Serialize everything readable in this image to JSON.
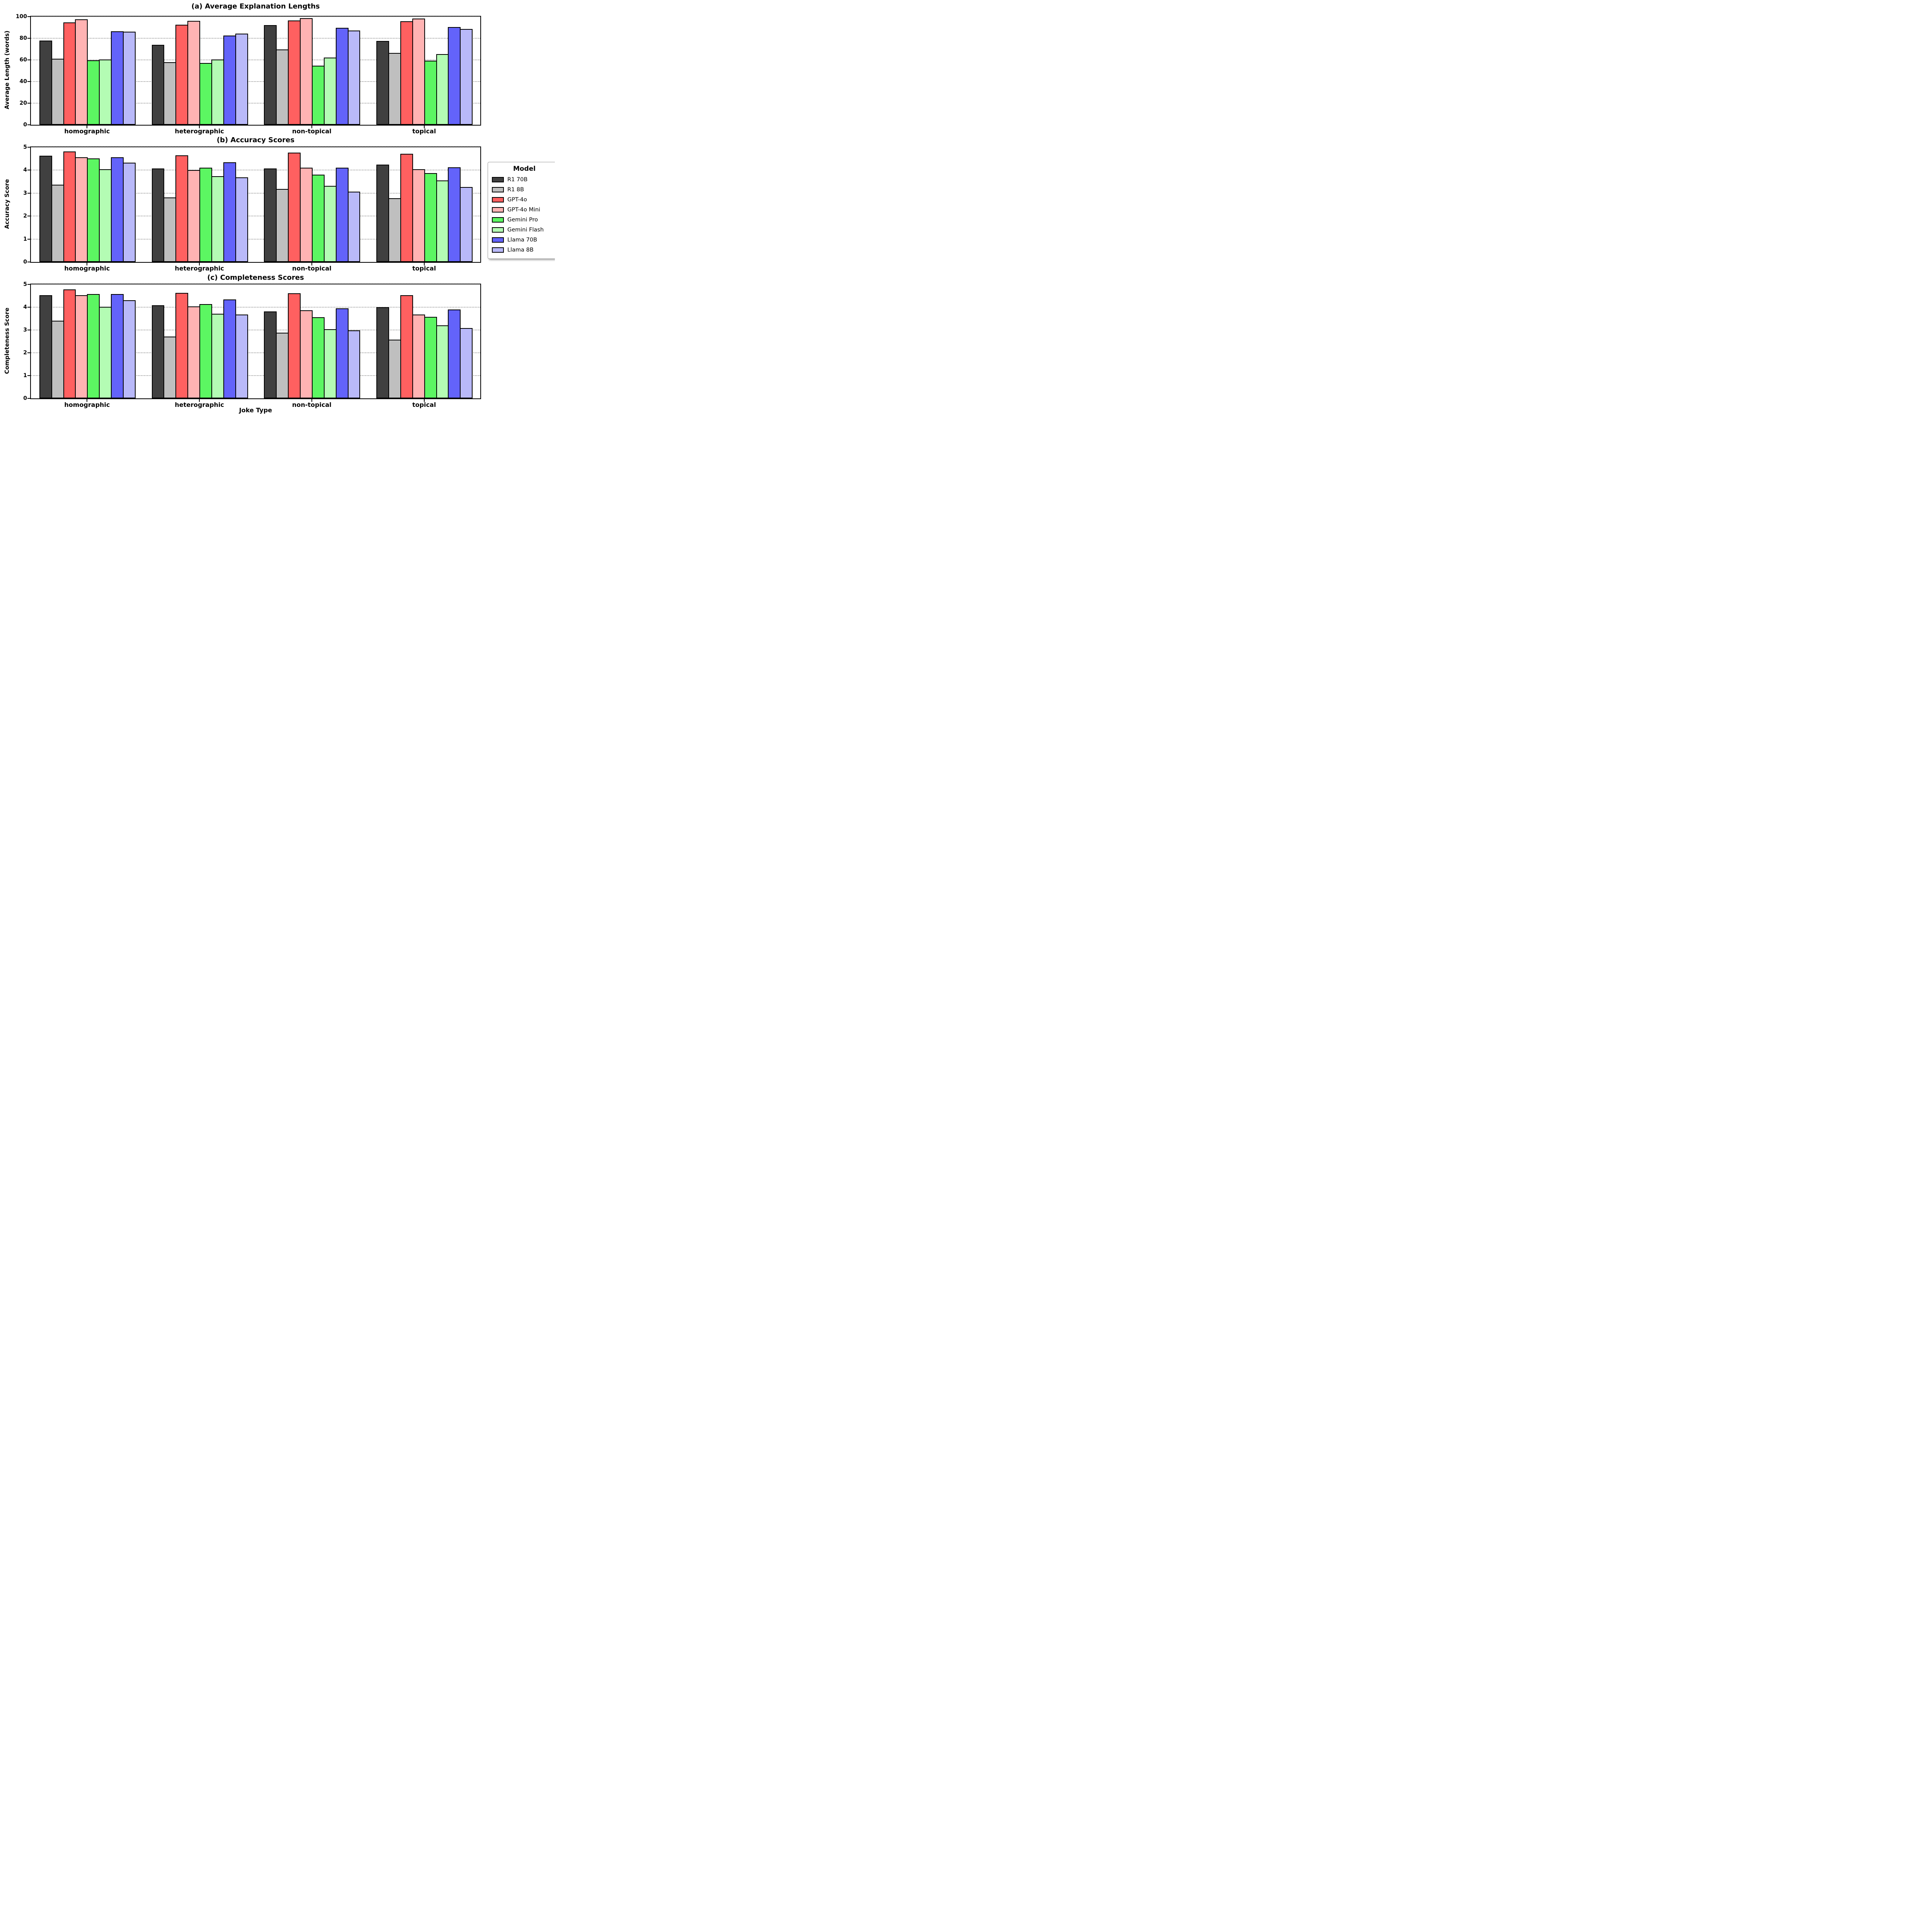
{
  "xlabel": "Joke Type",
  "legend": {
    "title": "Model",
    "position": "center right, outside plots"
  },
  "models": [
    {
      "name": "R1 70B",
      "color": "#404040"
    },
    {
      "name": "R1 8B",
      "color": "#bfbfbf"
    },
    {
      "name": "GPT-4o",
      "color": "#ff6060"
    },
    {
      "name": "GPT-4o Mini",
      "color": "#ffb3b3"
    },
    {
      "name": "Gemini Pro",
      "color": "#5cf662"
    },
    {
      "name": "Gemini Flash",
      "color": "#b4fcb4"
    },
    {
      "name": "Llama 70B",
      "color": "#6363fa"
    },
    {
      "name": "Llama 8B",
      "color": "#b9b9f9"
    }
  ],
  "chart_data": [
    {
      "type": "bar",
      "title": "(a) Average Explanation Lengths",
      "ylabel": "Average Length (words)",
      "ylim": [
        0,
        100
      ],
      "yticks": [
        0,
        20,
        40,
        60,
        80,
        100
      ],
      "grid": "dotted horizontal",
      "categories": [
        "homographic",
        "heterographic",
        "non-topical",
        "topical"
      ],
      "series": [
        {
          "name": "R1 70B",
          "values": [
            78,
            74,
            92,
            77.5
          ]
        },
        {
          "name": "R1 8B",
          "values": [
            61,
            58,
            69.5,
            66.5
          ]
        },
        {
          "name": "GPT-4o",
          "values": [
            94.5,
            92.5,
            96.5,
            95.7
          ]
        },
        {
          "name": "GPT-4o Mini",
          "values": [
            97.5,
            96,
            98.7,
            98.3
          ]
        },
        {
          "name": "Gemini Pro",
          "values": [
            59.5,
            57,
            54.5,
            59.3
          ]
        },
        {
          "name": "Gemini Flash",
          "values": [
            60.5,
            60.5,
            62.3,
            65.2
          ]
        },
        {
          "name": "Llama 70B",
          "values": [
            86.3,
            82.5,
            89.5,
            90.2
          ]
        },
        {
          "name": "Llama 8B",
          "values": [
            86.1,
            84.3,
            87.2,
            88.5
          ]
        }
      ]
    },
    {
      "type": "bar",
      "title": "(b) Accuracy Scores",
      "ylabel": "Accuracy Score",
      "ylim": [
        0,
        5
      ],
      "yticks": [
        0,
        1,
        2,
        3,
        4,
        5
      ],
      "grid": "dotted horizontal",
      "categories": [
        "homographic",
        "heterographic",
        "non-topical",
        "topical"
      ],
      "series": [
        {
          "name": "R1 70B",
          "values": [
            4.63,
            4.08,
            4.08,
            4.24
          ]
        },
        {
          "name": "R1 8B",
          "values": [
            3.36,
            2.81,
            3.19,
            2.77
          ]
        },
        {
          "name": "GPT-4o",
          "values": [
            4.81,
            4.65,
            4.76,
            4.71
          ]
        },
        {
          "name": "GPT-4o Mini",
          "values": [
            4.57,
            4.01,
            4.1,
            4.04
          ]
        },
        {
          "name": "Gemini Pro",
          "values": [
            4.52,
            4.11,
            3.81,
            3.88
          ]
        },
        {
          "name": "Gemini Flash",
          "values": [
            4.04,
            3.73,
            3.32,
            3.56
          ]
        },
        {
          "name": "Llama 70B",
          "values": [
            4.57,
            4.34,
            4.11,
            4.12
          ]
        },
        {
          "name": "Llama 8B",
          "values": [
            4.33,
            3.69,
            3.06,
            3.27
          ]
        }
      ]
    },
    {
      "type": "bar",
      "title": "(c) Completeness Scores",
      "ylabel": "Completeness Score",
      "ylim": [
        0,
        5
      ],
      "yticks": [
        0,
        1,
        2,
        3,
        4,
        5
      ],
      "grid": "dotted horizontal",
      "categories": [
        "homographic",
        "heterographic",
        "non-topical",
        "topical"
      ],
      "series": [
        {
          "name": "R1 70B",
          "values": [
            4.52,
            4.08,
            3.81,
            4.0
          ]
        },
        {
          "name": "R1 8B",
          "values": [
            3.41,
            2.72,
            2.88,
            2.58
          ]
        },
        {
          "name": "GPT-4o",
          "values": [
            4.78,
            4.63,
            4.61,
            4.52
          ]
        },
        {
          "name": "GPT-4o Mini",
          "values": [
            4.53,
            4.03,
            3.87,
            3.67
          ]
        },
        {
          "name": "Gemini Pro",
          "values": [
            4.57,
            4.14,
            3.56,
            3.58
          ]
        },
        {
          "name": "Gemini Flash",
          "values": [
            4.02,
            3.71,
            3.03,
            3.21
          ]
        },
        {
          "name": "Llama 70B",
          "values": [
            4.58,
            4.34,
            3.95,
            3.9
          ]
        },
        {
          "name": "Llama 8B",
          "values": [
            4.3,
            3.68,
            2.99,
            3.08
          ]
        }
      ]
    }
  ]
}
